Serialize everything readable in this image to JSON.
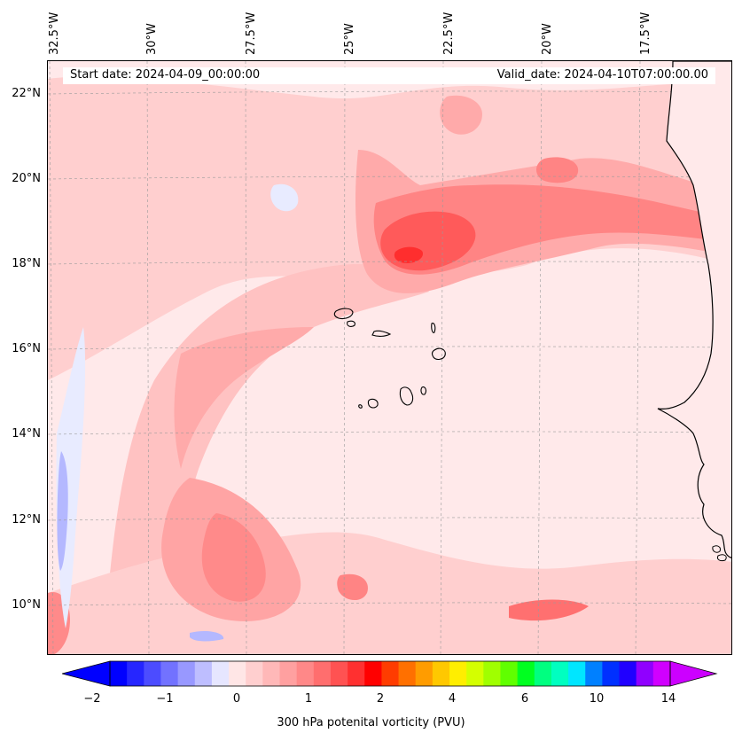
{
  "map": {
    "lon_labels": [
      "32.5°W",
      "30°W",
      "27.5°W",
      "25°W",
      "22.5°W",
      "20°W",
      "17.5°W"
    ],
    "lat_labels": [
      "22°N",
      "20°N",
      "18°N",
      "16°N",
      "14°N",
      "12°N",
      "10°N"
    ],
    "start_date": "Start date: 2024-04-09_00:00:00",
    "valid_date": "Valid_date: 2024-04-10T07:00:00.00"
  },
  "colorbar": {
    "label": "300 hPa potenital vorticity (PVU)",
    "ticks": [
      "−2",
      "−1",
      "0",
      "1",
      "2",
      "4",
      "6",
      "10",
      "14"
    ],
    "colors": [
      "#0000ff",
      "#2626ff",
      "#4c4cff",
      "#7272ff",
      "#9898ff",
      "#bebeff",
      "#e6e6ff",
      "#ffe6e6",
      "#ffcfcf",
      "#ffb8b8",
      "#ffa0a0",
      "#ff8888",
      "#ff6e6e",
      "#ff5252",
      "#ff3030",
      "#ff0000",
      "#ff3c00",
      "#ff7000",
      "#ff9c00",
      "#ffc800",
      "#ffee00",
      "#d4ff00",
      "#a0ff00",
      "#60ff00",
      "#00ff20",
      "#00ff80",
      "#00ffc0",
      "#00e6ff",
      "#0080ff",
      "#0030ff",
      "#2000ff",
      "#9000ff",
      "#d000ff"
    ],
    "extend_low_color": "#0000ff",
    "extend_high_color": "#cc00ff"
  },
  "palette": {
    "base": "#ffe9ea",
    "light": "#ffcfcf",
    "medium": "#ffaaaa",
    "strong": "#ff8484",
    "deep": "#ff5a5a",
    "core": "#ff2e2e",
    "blue_light": "#e8ebff",
    "blue_medium": "#b4b8ff",
    "coast": "#000000"
  }
}
